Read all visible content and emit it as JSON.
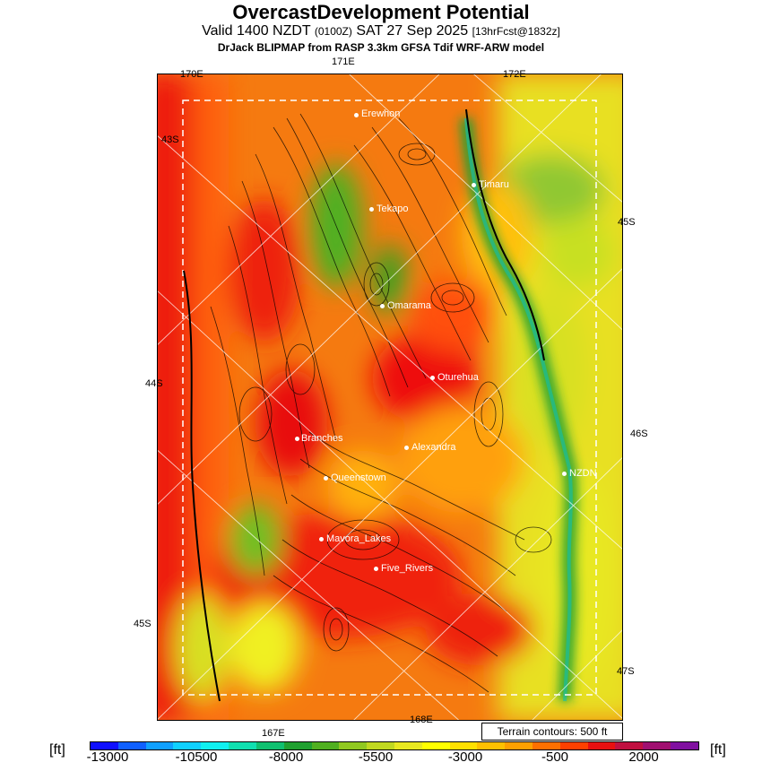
{
  "header": {
    "title": "OvercastDevelopment Potential",
    "valid_prefix": "Valid 1400 NZDT ",
    "valid_zone": "(0100Z)",
    "valid_date": " SAT 27 Sep 2025 ",
    "forecast": "[13hrFcst@1832z]",
    "source": "DrJack BLIPMAP from RASP 3.3km GFSA Tdif WRF-ARW model"
  },
  "axes": {
    "top_lon": [
      "170E",
      "171E",
      "172E"
    ],
    "left_lat": [
      "43S",
      "44S",
      "45S"
    ],
    "right_lat": [
      "45S",
      "46S",
      "47S"
    ],
    "bottom_lon": [
      "167E",
      "168E"
    ]
  },
  "towns": [
    {
      "name": "Erewhon"
    },
    {
      "name": "Timaru"
    },
    {
      "name": "Tekapo"
    },
    {
      "name": "Omarama"
    },
    {
      "name": "Oturehua"
    },
    {
      "name": "Branches"
    },
    {
      "name": "Alexandra"
    },
    {
      "name": "NZDN"
    },
    {
      "name": "Queenstown"
    },
    {
      "name": "Mavora_Lakes"
    },
    {
      "name": "Five_Rivers"
    }
  ],
  "legend": {
    "contour_note": "Terrain contours: 500 ft",
    "unit_left": "[ft]",
    "unit_right": "[ft]",
    "ticks": [
      "-13000",
      "-10500",
      "-8000",
      "-5500",
      "-3000",
      "-500",
      "2000"
    ],
    "colors": [
      "#1010ff",
      "#1060ff",
      "#10a0ff",
      "#10d0ff",
      "#10f0f0",
      "#10e0b0",
      "#10c070",
      "#20a030",
      "#50b020",
      "#90c820",
      "#c0d820",
      "#e8e820",
      "#ffff00",
      "#ffe000",
      "#ffc000",
      "#ffa000",
      "#ff7000",
      "#ff4000",
      "#e81010",
      "#c01040",
      "#a01070",
      "#8010a0"
    ]
  }
}
